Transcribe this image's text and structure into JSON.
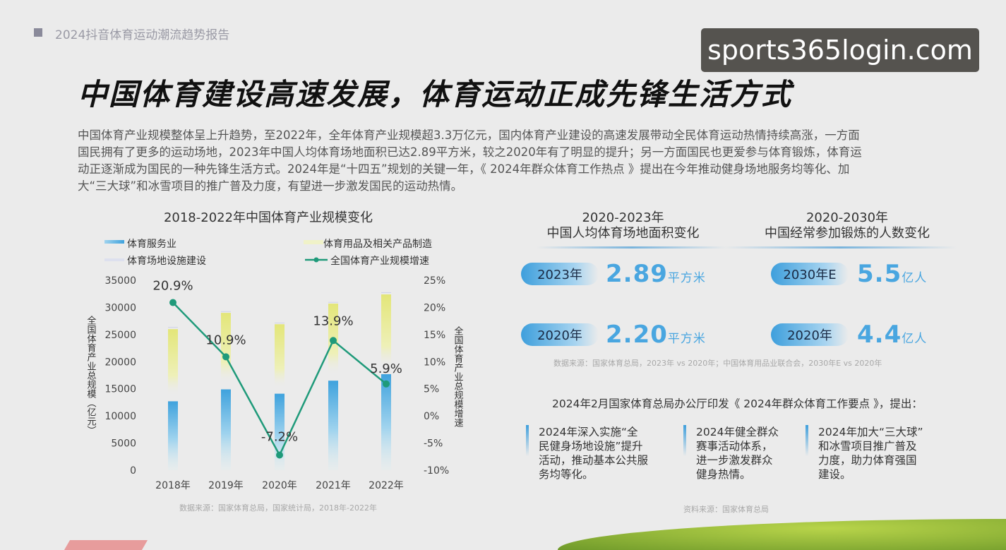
{
  "header": {
    "report_name": "2024抖音体育运动潮流趋势报告"
  },
  "watermark": "sports365login.com",
  "title": "中国体育建设高速发展，体育运动正成先锋生活方式",
  "intro_lines": [
    "中国体育产业规模整体呈上升趋势，至2022年，全年体育产业规模超3.3万亿元，国内体育产业建设的高速发展带动全民体育运动热情持续高涨，一方面",
    "国民拥有了更多的运动场地，2023年中国人均体育场地面积已达2.89平方米，较之2020年有了明显的提升；另一方面国民也更爱参与体育锻炼，体育运",
    "动正逐渐成为国民的一种先锋生活方式。2024年是“十四五”规划的关键一年，《 2024年群众体育工作热点 》提出在今年推动健身场地服务均等化、加",
    "大“三大球”和冰雪项目的推广普及力度，有望进一步激发国民的运动热情。"
  ],
  "chart_data": {
    "type": "bar",
    "title": "2018-2022年中国体育产业规模变化",
    "categories": [
      "2018年",
      "2019年",
      "2020年",
      "2021年",
      "2022年"
    ],
    "ylabel": "全国体育产业总规模（亿元）",
    "y2label": "全国体育产业总规模增速",
    "ylim": [
      0,
      35000
    ],
    "yticks": [
      "35000",
      "30000",
      "25000",
      "20000",
      "15000",
      "10000",
      "5000",
      "0"
    ],
    "y2lim": [
      -10,
      25
    ],
    "y2ticks": [
      "25%",
      "20%",
      "15%",
      "10%",
      "5%",
      "0%",
      "-5%",
      "-10%"
    ],
    "stacked": true,
    "legend_position": "top",
    "series": [
      {
        "name": "体育服务业",
        "type": "bar",
        "color": "#3fa2dd",
        "values": [
          12700,
          14900,
          14100,
          16500,
          17700
        ]
      },
      {
        "name": "体育用品及相关产品制造",
        "type": "bar",
        "color": "#e3e679",
        "values": [
          13300,
          14100,
          12800,
          14200,
          14700
        ]
      },
      {
        "name": "体育场地设施建设",
        "type": "bar",
        "color": "#c9cde6",
        "values": [
          400,
          300,
          300,
          300,
          400
        ]
      },
      {
        "name": "全国体育产业规模增速",
        "type": "line",
        "axis": "right",
        "color": "#1f9a7a",
        "values": [
          20.9,
          10.9,
          -7.2,
          13.9,
          5.9
        ],
        "labels": [
          "20.9%",
          "10.9%",
          "-7.2%",
          "13.9%",
          "5.9%"
        ]
      }
    ],
    "source": "数据来源：国家体育总局，国家统计局，2018年-2022年"
  },
  "area_stats": {
    "title_line1": "2020-2023年",
    "title_line2": "中国人均体育场地面积变化",
    "items": [
      {
        "year": "2023年",
        "value": "2.89",
        "unit": "平方米"
      },
      {
        "year": "2020年",
        "value": "2.20",
        "unit": "平方米"
      }
    ]
  },
  "exercise_stats": {
    "title_line1": "2020-2030年",
    "title_line2": "中国经常参加锻炼的人数变化",
    "items": [
      {
        "year": "2030年E",
        "value": "5.5",
        "unit": "亿人"
      },
      {
        "year": "2020年",
        "value": "4.4",
        "unit": "亿人"
      }
    ]
  },
  "stats_source": "数据来源：国家体育总局，2023年 vs 2020年；中国体育用品业联合会，2030年E vs 2020年",
  "policy": {
    "heading": "2024年2月国家体育总局办公厅印发《 2024年群众体育工作要点 》，提出：",
    "points": [
      [
        "2024年深入实施“全",
        "民健身场地设施”提升",
        "活动，推动基本公共服",
        "务均等化。"
      ],
      [
        "2024年健全群众",
        "赛事活动体系，",
        "进一步激发群众",
        "健身热情。"
      ],
      [
        "2024年加大“三大球”",
        "和冰雪项目推广普及",
        "力度，助力体育强国",
        "建设。"
      ]
    ],
    "source": "资料来源：国家体育总局"
  }
}
